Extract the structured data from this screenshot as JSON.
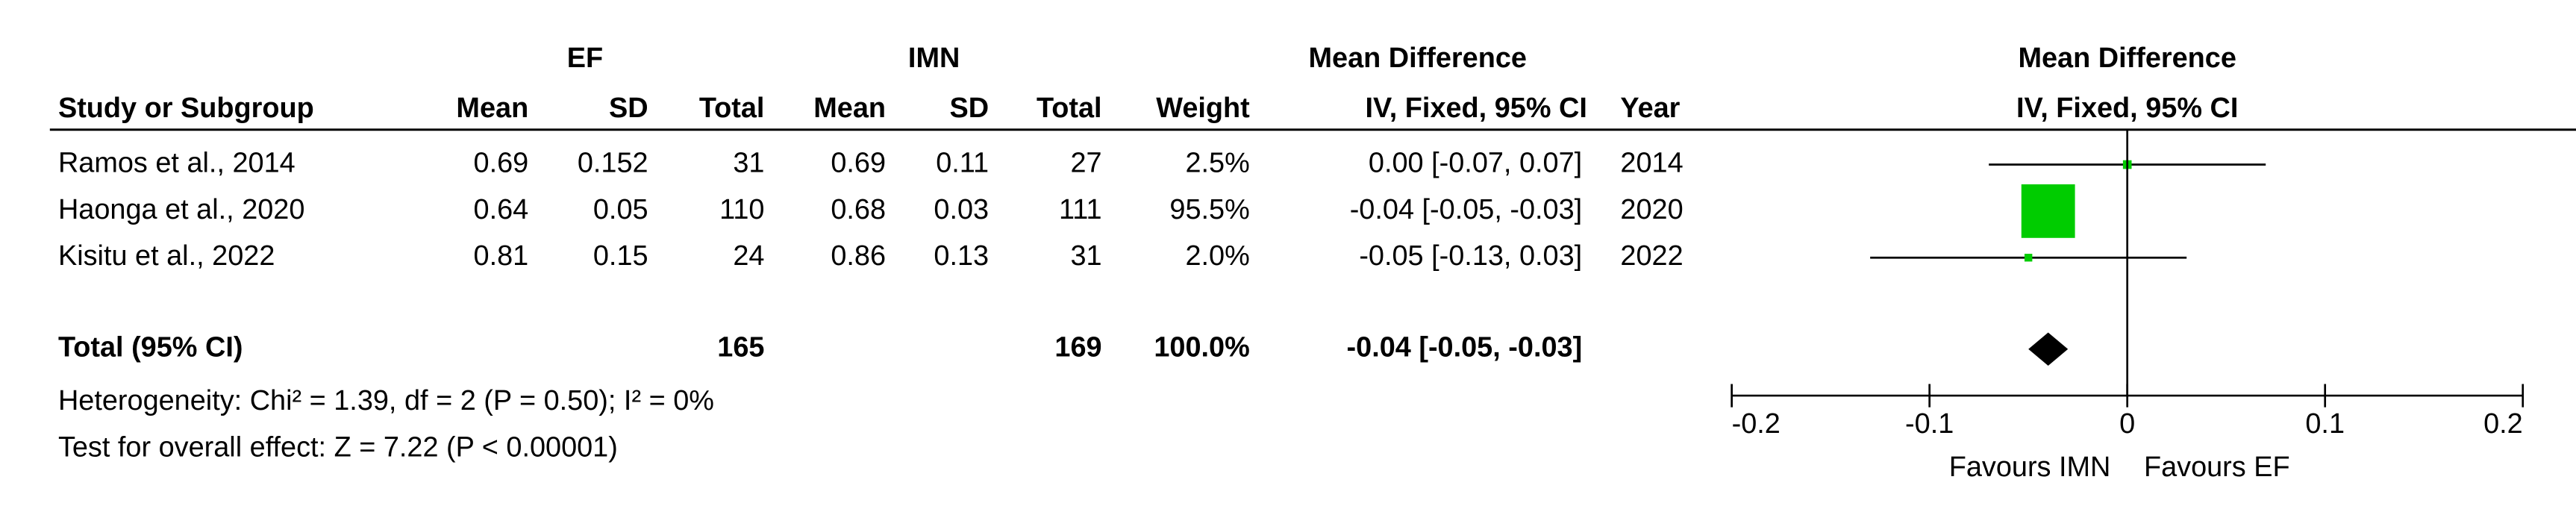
{
  "chart_data": {
    "type": "forest",
    "group_headers": {
      "ef": "EF",
      "imn": "IMN",
      "md_table": "Mean Difference",
      "md_plot": "Mean Difference"
    },
    "columns": [
      "Study or Subgroup",
      "Mean",
      "SD",
      "Total",
      "Mean",
      "SD",
      "Total",
      "Weight",
      "IV, Fixed, 95% CI",
      "Year",
      "IV, Fixed, 95% CI"
    ],
    "rows": [
      {
        "study": "Ramos et al., 2014",
        "ef_mean": 0.69,
        "ef_sd": 0.152,
        "ef_total": 31,
        "imn_mean": 0.69,
        "imn_sd": 0.11,
        "imn_total": 27,
        "weight": 2.5,
        "weight_label": "2.5%",
        "md": 0.0,
        "ci": [
          -0.07,
          0.07
        ],
        "ci_label": "0.00 [-0.07, 0.07]",
        "year": 2014
      },
      {
        "study": "Haonga et al., 2020",
        "ef_mean": 0.64,
        "ef_sd": 0.05,
        "ef_total": 110,
        "imn_mean": 0.68,
        "imn_sd": 0.03,
        "imn_total": 111,
        "weight": 95.5,
        "weight_label": "95.5%",
        "md": -0.04,
        "ci": [
          -0.05,
          -0.03
        ],
        "ci_label": "-0.04 [-0.05, -0.03]",
        "year": 2020
      },
      {
        "study": "Kisitu et al., 2022",
        "ef_mean": 0.81,
        "ef_sd": 0.15,
        "ef_total": 24,
        "imn_mean": 0.86,
        "imn_sd": 0.13,
        "imn_total": 31,
        "weight": 2.0,
        "weight_label": "2.0%",
        "md": -0.05,
        "ci": [
          -0.13,
          0.03
        ],
        "ci_label": "-0.05 [-0.13, 0.03]",
        "year": 2022
      }
    ],
    "total": {
      "label": "Total (95% CI)",
      "ef_total": 165,
      "imn_total": 169,
      "weight": 100.0,
      "weight_label": "100.0%",
      "md": -0.04,
      "ci": [
        -0.05,
        -0.03
      ],
      "ci_label": "-0.04 [-0.05, -0.03]"
    },
    "heterogeneity": "Heterogeneity: Chi² = 1.39, df = 2 (P = 0.50); I² = 0%",
    "overall_effect": "Test for overall effect: Z = 7.22 (P < 0.00001)",
    "xlim": [
      -0.2,
      0.2
    ],
    "xticks": [
      -0.2,
      -0.1,
      0,
      0.1,
      0.2
    ],
    "favours_left": "Favours IMN",
    "favours_right": "Favours EF",
    "box_color": "#00cc00",
    "diamond_color": "#000000"
  }
}
